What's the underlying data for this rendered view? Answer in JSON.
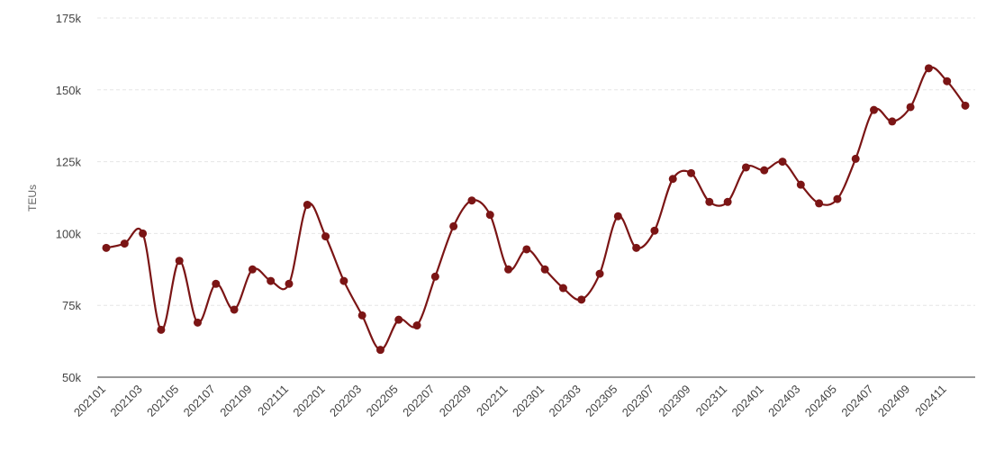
{
  "chart_data": {
    "type": "line",
    "ylabel": "TEUs",
    "ylim": [
      50000,
      175000
    ],
    "y_ticks": [
      {
        "value": 50000,
        "label": "50k"
      },
      {
        "value": 75000,
        "label": "75k"
      },
      {
        "value": 100000,
        "label": "100k"
      },
      {
        "value": 125000,
        "label": "125k"
      },
      {
        "value": 150000,
        "label": "150k"
      },
      {
        "value": 175000,
        "label": "175k"
      }
    ],
    "categories": [
      "202101",
      "202102",
      "202103",
      "202104",
      "202105",
      "202106",
      "202107",
      "202108",
      "202109",
      "202110",
      "202111",
      "202112",
      "202201",
      "202202",
      "202203",
      "202204",
      "202205",
      "202206",
      "202207",
      "202208",
      "202209",
      "202210",
      "202211",
      "202212",
      "202301",
      "202302",
      "202303",
      "202304",
      "202305",
      "202306",
      "202307",
      "202308",
      "202309",
      "202310",
      "202311",
      "202312",
      "202401",
      "202402",
      "202403",
      "202404",
      "202405",
      "202406",
      "202407",
      "202408",
      "202409",
      "202410",
      "202411",
      "202412"
    ],
    "x_tick_labels": [
      "202101",
      "202103",
      "202105",
      "202107",
      "202109",
      "202111",
      "202201",
      "202203",
      "202205",
      "202207",
      "202209",
      "202211",
      "202301",
      "202303",
      "202305",
      "202307",
      "202309",
      "202311",
      "202401",
      "202403",
      "202405",
      "202407",
      "202409",
      "202411"
    ],
    "grid": true,
    "series": [
      {
        "color": "#7b1515",
        "values": [
          95000,
          96500,
          100000,
          66500,
          90500,
          69000,
          82500,
          73500,
          87500,
          83500,
          82500,
          110000,
          99000,
          83500,
          71500,
          59500,
          70000,
          68000,
          85000,
          102500,
          111500,
          106500,
          87500,
          94500,
          87500,
          81000,
          77000,
          86000,
          106000,
          95000,
          101000,
          119000,
          121000,
          111000,
          111000,
          123000,
          122000,
          125000,
          117000,
          110500,
          112000,
          126000,
          143000,
          139000,
          144000,
          157500,
          153000,
          144500
        ]
      }
    ]
  }
}
